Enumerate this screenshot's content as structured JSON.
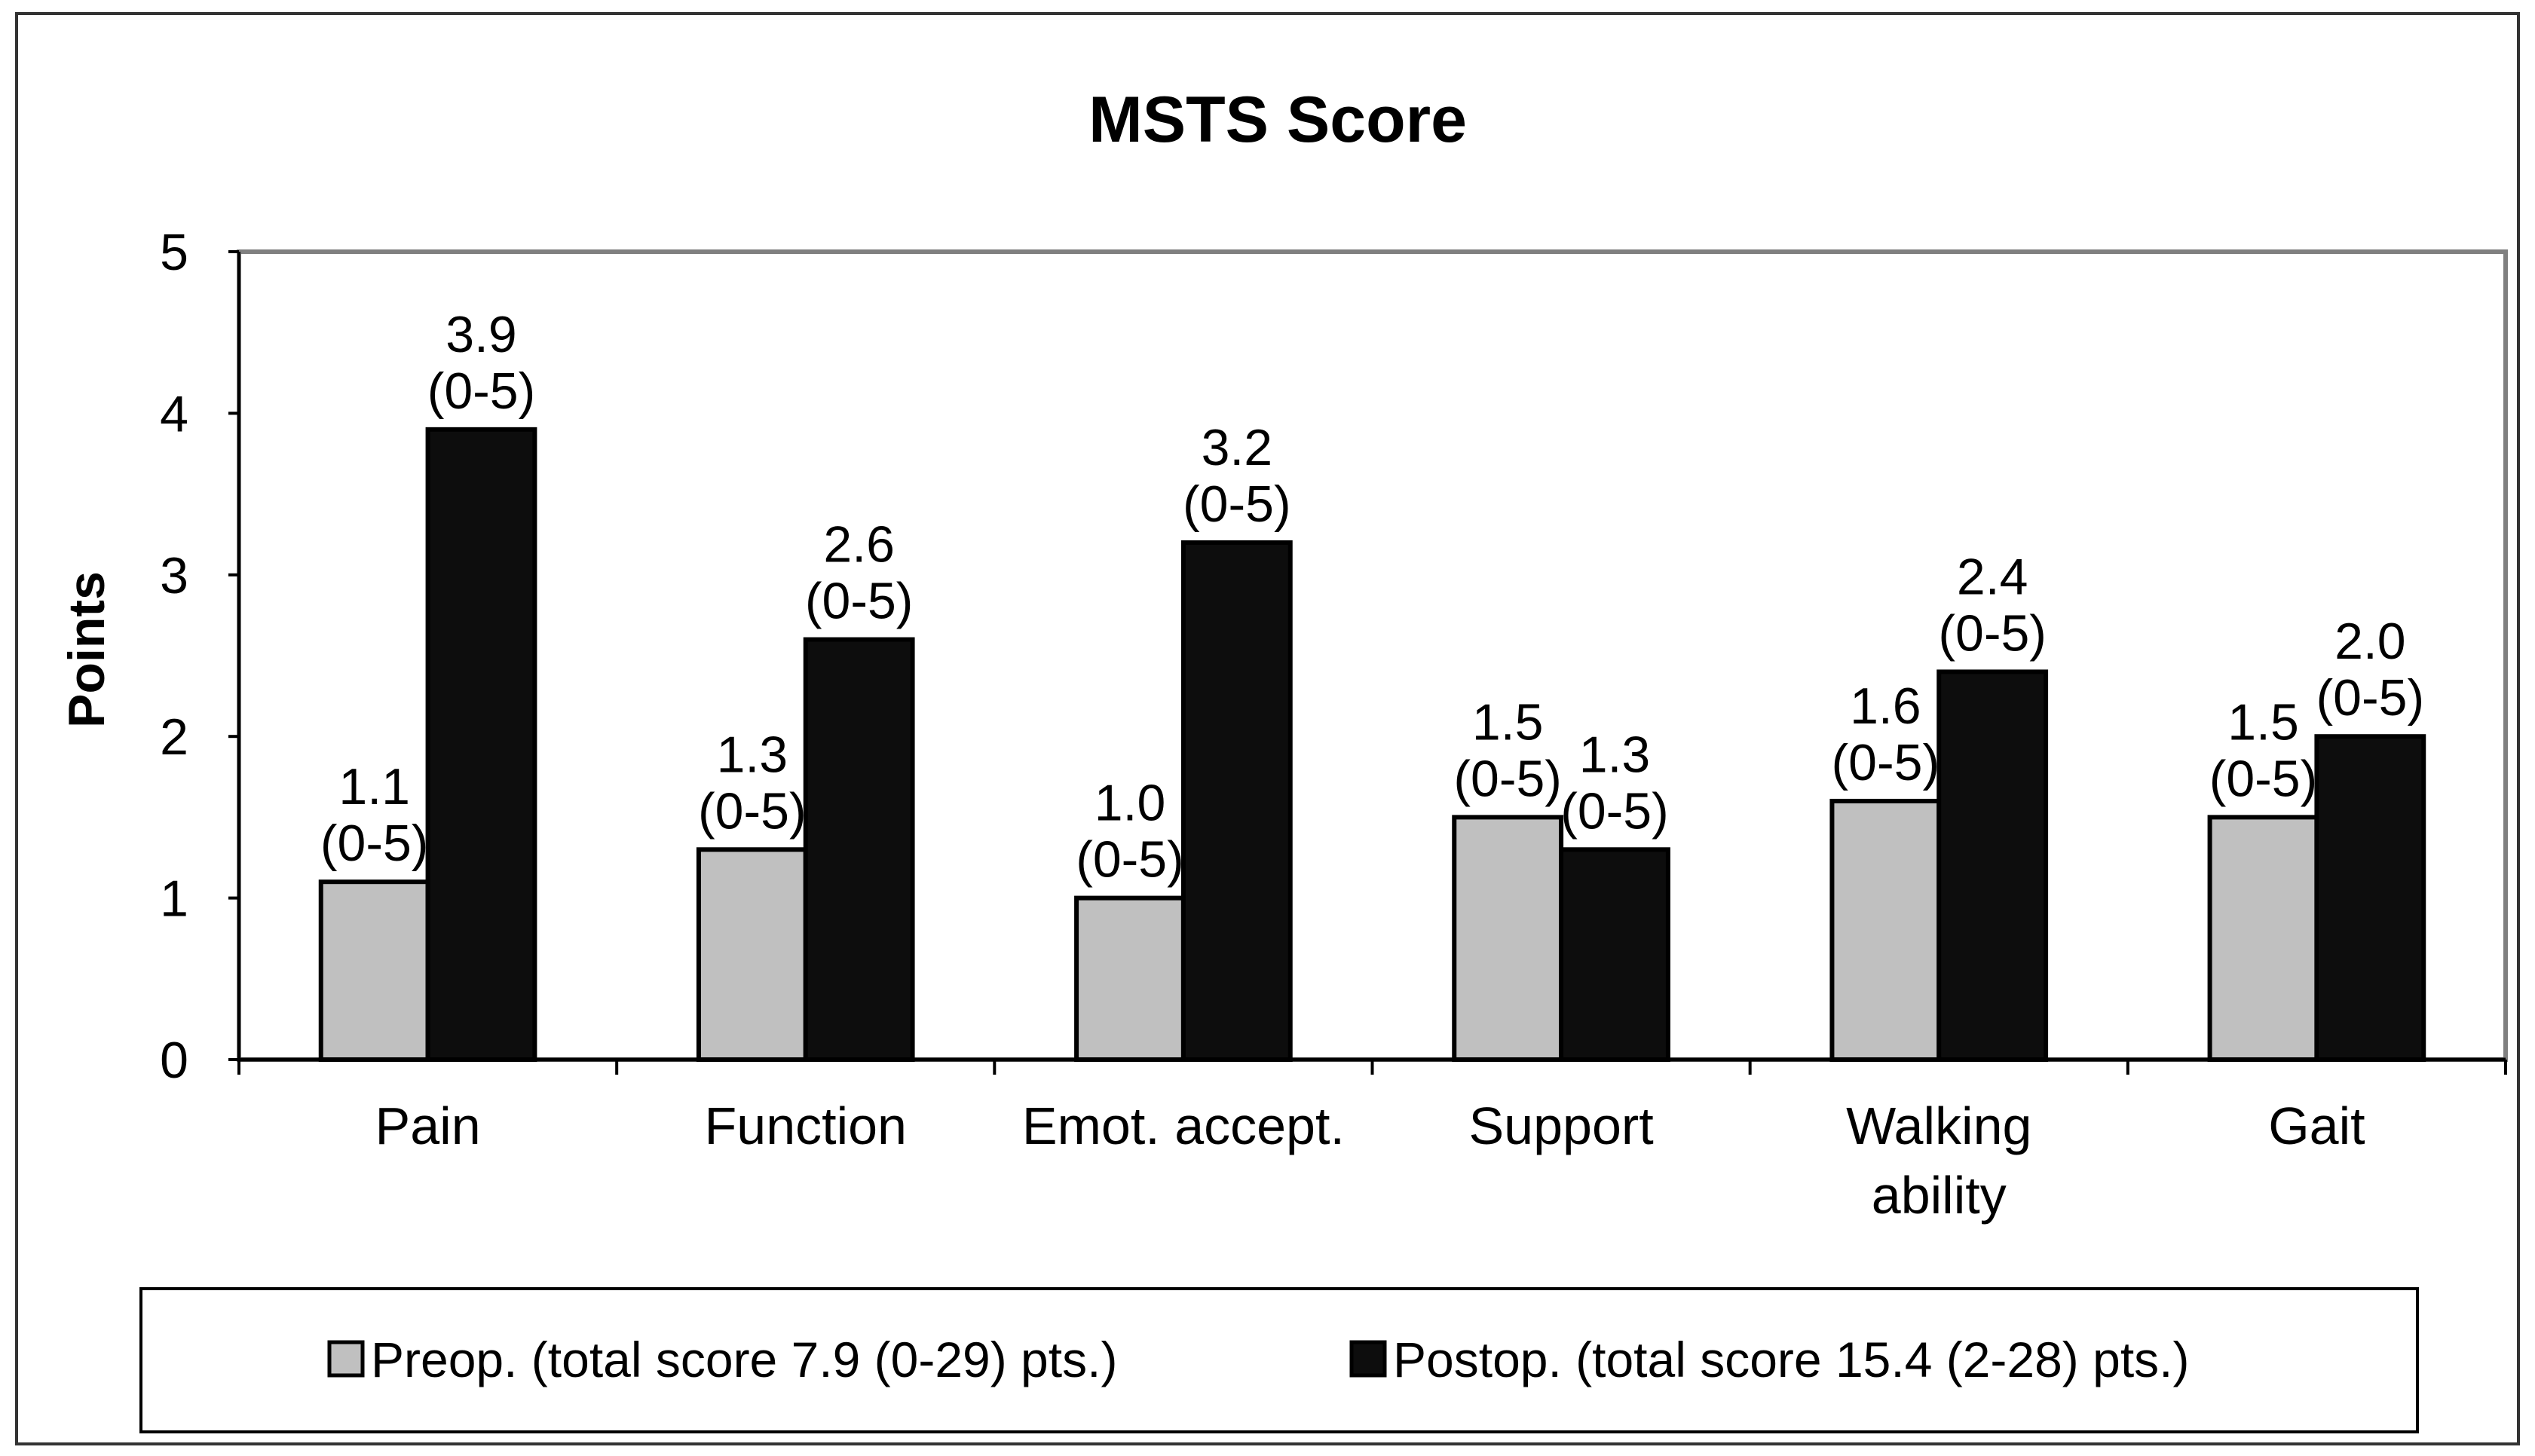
{
  "chart_data": {
    "type": "bar",
    "title": "MSTS Score",
    "xlabel": "",
    "ylabel": "Points",
    "ylim": [
      0,
      5
    ],
    "yticks": [
      0,
      1,
      2,
      3,
      4,
      5
    ],
    "grid": false,
    "legend_position": "bottom",
    "categories": [
      [
        "Pain"
      ],
      [
        "Function"
      ],
      [
        "Emot. accept."
      ],
      [
        "Support"
      ],
      [
        "Walking",
        "ability"
      ],
      [
        "Gait"
      ]
    ],
    "series": [
      {
        "name": "Preop. (total score 7.9 (0-29) pts.)",
        "color": "#c0c0c0",
        "values": [
          1.1,
          1.3,
          1.0,
          1.5,
          1.6,
          1.5
        ],
        "labels": [
          "1.1",
          "1.3",
          "1.0",
          "1.5",
          "1.6",
          "1.5"
        ],
        "ranges": [
          "(0-5)",
          "(0-5)",
          "(0-5)",
          "(0-5)",
          "(0-5)",
          "(0-5)"
        ]
      },
      {
        "name": "Postop. (total score 15.4 (2-28) pts.)",
        "color": "#0d0d0d",
        "values": [
          3.9,
          2.6,
          3.2,
          1.3,
          2.4,
          2.0
        ],
        "labels": [
          "3.9",
          "2.6",
          "3.2",
          "1.3",
          "2.4",
          "2.0"
        ],
        "ranges": [
          "(0-5)",
          "(0-5)",
          "(0-5)",
          "(0-5)",
          "(0-5)",
          "(0-5)"
        ]
      }
    ]
  }
}
